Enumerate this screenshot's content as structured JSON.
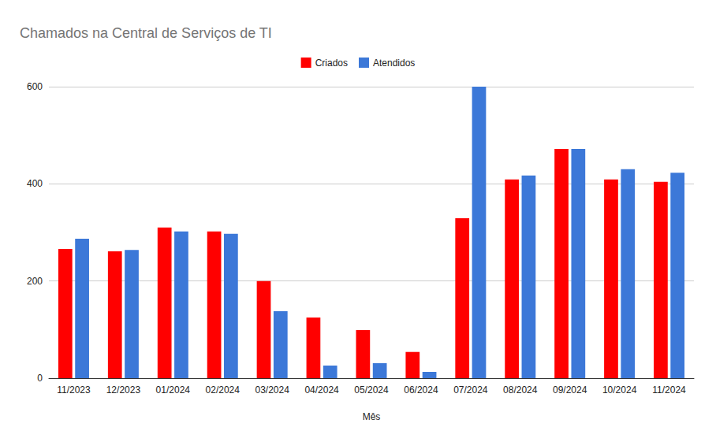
{
  "chart_data": {
    "type": "bar",
    "title": "Chamados na Central de Serviços de TI",
    "x_label": "Mês",
    "categories": [
      "11/2023",
      "12/2023",
      "01/2024",
      "02/2024",
      "03/2024",
      "04/2024",
      "05/2024",
      "06/2024",
      "07/2024",
      "08/2024",
      "09/2024",
      "10/2024",
      "11/2024"
    ],
    "series": [
      {
        "name": "Criados",
        "color": "#ff0000",
        "values": [
          266,
          261,
          310,
          302,
          200,
          125,
          99,
          54,
          329,
          409,
          472,
          409,
          404
        ]
      },
      {
        "name": "Atendidos",
        "color": "#3c78d8",
        "values": [
          287,
          264,
          302,
          297,
          138,
          26,
          31,
          13,
          600,
          417,
          472,
          430,
          423
        ]
      }
    ],
    "ylim": [
      0,
      600
    ],
    "yticks": [
      0,
      200,
      400,
      600
    ],
    "grid": true,
    "legend": "top"
  }
}
